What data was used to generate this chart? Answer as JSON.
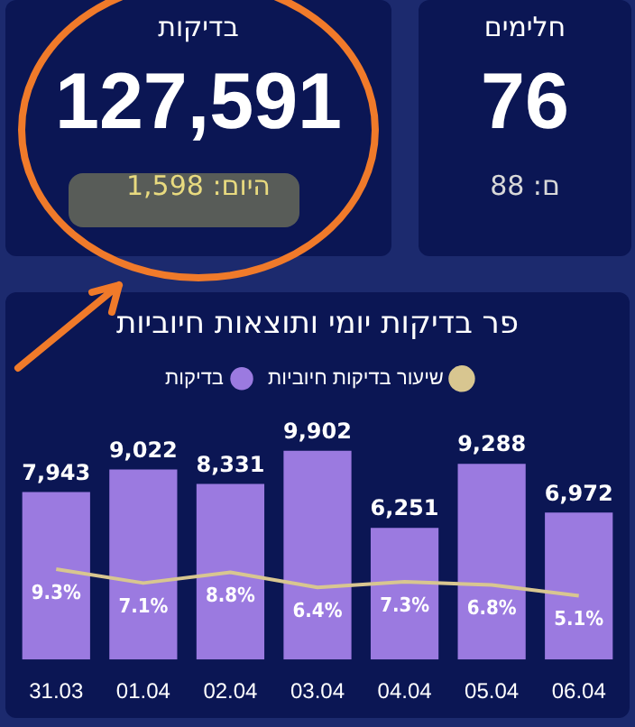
{
  "chart_data": [
    {
      "type": "other",
      "title": "בדיקות",
      "annotations": [
        "127,591",
        "היום: 1,598"
      ]
    },
    {
      "type": "other",
      "title": "חלימים",
      "annotations": [
        "76",
        "ם: 88"
      ]
    },
    {
      "type": "bar",
      "title": "פר בדיקות יומי ותוצאות חיוביות",
      "categories": [
        "31.03",
        "01.04",
        "02.04",
        "03.04",
        "04.04",
        "05.04",
        "06.04"
      ],
      "series": [
        {
          "name": "בדיקות",
          "color": "#9b7ae0",
          "values": [
            7943,
            9022,
            8331,
            9902,
            6251,
            9288,
            6972
          ],
          "value_labels": [
            "7,943",
            "9,022",
            "8,331",
            "9,902",
            "6,251",
            "9,288",
            "6,972"
          ]
        },
        {
          "name": "שיעור בדיקות חיוביות",
          "type": "line",
          "axis": "y2",
          "color": "#d8c690",
          "values": [
            9.3,
            7.1,
            8.8,
            6.4,
            7.3,
            6.8,
            5.1
          ],
          "value_labels": [
            "9.3%",
            "7.1%",
            "8.8%",
            "6.4%",
            "7.3%",
            "6.8%",
            "5.1%"
          ]
        }
      ],
      "legend": "top",
      "grid": false,
      "tick_labels": "x",
      "marker": "none"
    }
  ]
}
